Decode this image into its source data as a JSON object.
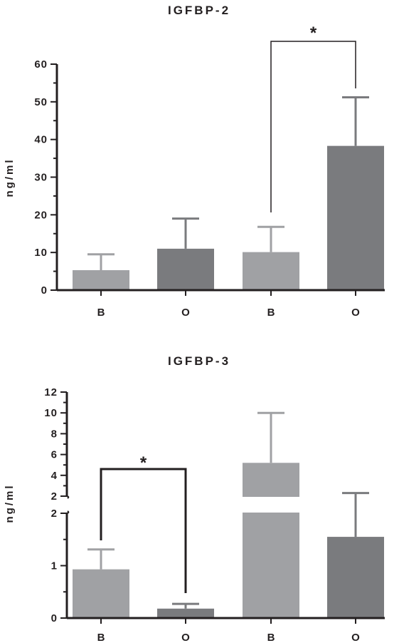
{
  "chart_data": [
    {
      "type": "bar",
      "title": "IGFBP-2",
      "ylabel": "ng/ml",
      "xlabel": "",
      "categories": [
        "B",
        "O",
        "B",
        "O"
      ],
      "values": [
        5.3,
        11.0,
        10.1,
        38.3
      ],
      "errors": [
        4.2,
        8.0,
        6.7,
        12.9
      ],
      "ylim": [
        0,
        60
      ],
      "yticks": [
        0,
        10,
        20,
        30,
        40,
        50,
        60
      ],
      "bar_colors": [
        "#a0a1a4",
        "#7a7b7e",
        "#a0a1a4",
        "#7a7b7e"
      ],
      "significance": [
        {
          "from": 2,
          "to": 3,
          "label": "*"
        }
      ]
    },
    {
      "type": "bar",
      "title": "IGFBP-3",
      "ylabel": "ng/ml",
      "xlabel": "",
      "categories": [
        "B",
        "O",
        "B",
        "O"
      ],
      "values": [
        0.93,
        0.18,
        5.2,
        1.55
      ],
      "errors": [
        0.38,
        0.09,
        4.8,
        0.75
      ],
      "ylim": [
        0,
        12
      ],
      "axis_break": {
        "lower": [
          0,
          2
        ],
        "upper": [
          2,
          12
        ]
      },
      "yticks_lower": [
        0,
        1,
        2
      ],
      "yticks_upper": [
        2,
        4,
        6,
        8,
        10,
        12
      ],
      "bar_colors": [
        "#a0a1a4",
        "#7a7b7e",
        "#a0a1a4",
        "#7a7b7e"
      ],
      "significance": [
        {
          "from": 0,
          "to": 1,
          "label": "*"
        }
      ]
    }
  ]
}
